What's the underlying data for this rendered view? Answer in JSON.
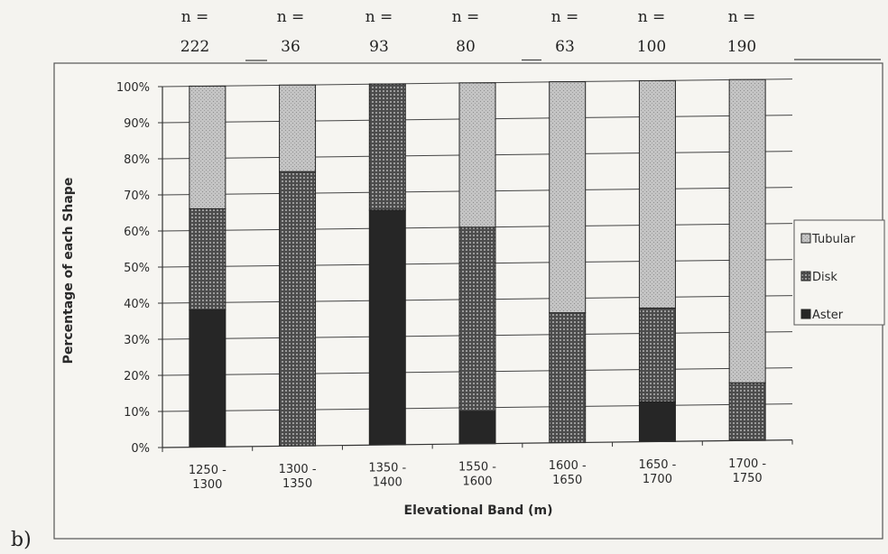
{
  "panel_label": "b)",
  "chart_data": {
    "type": "bar",
    "stacked": true,
    "percent_stacked": true,
    "title": "",
    "xlabel": "Elevational Band (m)",
    "ylabel": "Percentage of each Shape",
    "ylim": [
      0,
      100
    ],
    "y_ticks": [
      "0%",
      "10%",
      "20%",
      "30%",
      "40%",
      "50%",
      "60%",
      "70%",
      "80%",
      "90%",
      "100%"
    ],
    "grid": true,
    "legend_position": "right",
    "categories": [
      [
        "1250 -",
        "1300"
      ],
      [
        "1300 -",
        "1350"
      ],
      [
        "1350 -",
        "1400"
      ],
      [
        "1550 -",
        "1600"
      ],
      [
        "1600 -",
        "1650"
      ],
      [
        "1650 -",
        "1700"
      ],
      [
        "1700 -",
        "1750"
      ]
    ],
    "sample_sizes": [
      {
        "label": "n =",
        "value": "222"
      },
      {
        "label": "n =",
        "value": "36"
      },
      {
        "label": "n =",
        "value": "93"
      },
      {
        "label": "n =",
        "value": "80"
      },
      {
        "label": "n =",
        "value": "63"
      },
      {
        "label": "n =",
        "value": "100"
      },
      {
        "label": "n =",
        "value": "190"
      }
    ],
    "series": [
      {
        "name": "Aster",
        "color": "#2b2b2b",
        "values": [
          38,
          0,
          65,
          9,
          0,
          11,
          0
        ]
      },
      {
        "name": "Disk",
        "color": "#5a5a5a",
        "values": [
          28,
          76,
          35,
          51,
          36,
          26,
          16
        ]
      },
      {
        "name": "Tubular",
        "color": "#bdbdbd",
        "values": [
          34,
          24,
          0,
          40,
          64,
          63,
          84
        ]
      }
    ],
    "legend_order": [
      "Tubular",
      "Disk",
      "Aster"
    ]
  }
}
